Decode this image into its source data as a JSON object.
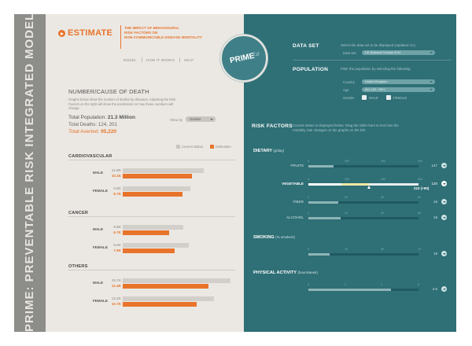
{
  "spine": {
    "title": "PRIME: PREVENTABLE RISK INTEGRATED MODEL"
  },
  "brand": {
    "name": "ESTIMATE",
    "tagline": [
      "THE IMPACT OF BEHAVIOURAL",
      "RISK FACTORS ON",
      "NON-COMMUNICABLE DISEASE MORTALITY"
    ],
    "nav": [
      "MODEL",
      "HOW IT WORKS",
      "HELP"
    ]
  },
  "logo": {
    "word": "PRIME",
    "version": "2.0"
  },
  "death": {
    "title": "NUMBER/CAUSE OF DEATH",
    "desc": [
      "Graphs below show the number of deaths by diseases. Adjusting the Risk",
      "Factors on the right will show the predictions on how these numbers will",
      "change."
    ],
    "population_label": "Total Population:",
    "population_value": "21.3 Million",
    "deaths_label": "Total Deaths:",
    "deaths_value": "124, 201",
    "averted_label": "Total Averted:",
    "averted_value": "95,220",
    "show_by_label": "Show by",
    "show_by_value": "Gender",
    "legend_current": "Current Status",
    "legend_estimation": "Estimation"
  },
  "chart_data": {
    "type": "bar",
    "orientation": "horizontal",
    "title": "NUMBER/CAUSE OF DEATH",
    "series_names": [
      "Current Status",
      "Estimation"
    ],
    "groups": [
      {
        "name": "CARDIOVASCULAR",
        "rows": [
          {
            "label": "MALE",
            "current_label": "11.8K",
            "current": 11.8,
            "estimation_label": "10.1K",
            "estimation": 10.1
          },
          {
            "label": "FEMALE",
            "current_label": "9.8K",
            "current": 9.8,
            "estimation_label": "8.7K",
            "estimation": 8.7
          }
        ]
      },
      {
        "name": "CANCER",
        "rows": [
          {
            "label": "MALE",
            "current_label": "8.8K",
            "current": 8.8,
            "estimation_label": "6.7K",
            "estimation": 6.7
          },
          {
            "label": "FEMALE",
            "current_label": "9.6K",
            "current": 9.6,
            "estimation_label": "7.5K",
            "estimation": 7.5
          }
        ]
      },
      {
        "name": "OTHERS",
        "rows": [
          {
            "label": "MALE",
            "current_label": "15.7K",
            "current": 15.7,
            "estimation_label": "12.4K",
            "estimation": 12.4
          },
          {
            "label": "FEMALE",
            "current_label": "13.3K",
            "current": 13.3,
            "estimation_label": "10.7K",
            "estimation": 10.7
          }
        ]
      }
    ],
    "xlim": [
      0,
      16
    ],
    "colors": {
      "current": "#d2cfca",
      "estimation": "#e8742c"
    }
  },
  "dataset": {
    "title": "DATA SET",
    "desc": "Select the data set to be displayed (Updated 10.)",
    "field_label": "Data Set",
    "field_value": "UK National Census 2011"
  },
  "population": {
    "title": "POPULATION",
    "desc": "Filter the population by selecting the following",
    "country_label": "Country",
    "country_value": "United Kingdom",
    "age_label": "Age",
    "age_value": "ALL (15 - 99+)",
    "gender_label": "Gender",
    "male_label": "MALE",
    "female_label": "FEMALE"
  },
  "risk": {
    "title": "RISK FACTORS",
    "desc": [
      "Current status is displayed below. Drag the slider bars to test how the",
      "mortality rate changes on the graphs on the left."
    ],
    "dietary": {
      "title": "DIETARY",
      "unit": "(g/day)",
      "sliders": [
        {
          "label": "FRUITS",
          "value": "147",
          "level": 0.23,
          "ticks": [
            "0",
            "200",
            "400",
            "600"
          ]
        },
        {
          "label": "VEGETABLE",
          "value": "120",
          "value2": "210 (+90)",
          "level": 0.3,
          "level2": 0.55,
          "ticks": [
            "0",
            "200",
            "400",
            "600"
          ]
        },
        {
          "label": "FIBER",
          "value": "16",
          "level": 0.27,
          "ticks": [
            "0",
            "20",
            "40",
            "60"
          ]
        },
        {
          "label": "ALCOHOL",
          "value": "18",
          "level": 0.29,
          "ticks": [
            "0",
            "20",
            "40",
            "60"
          ]
        }
      ]
    },
    "smoking": {
      "title": "SMOKING",
      "unit": "(% smokers)",
      "value": "19",
      "level": 0.19,
      "ticks": [
        "0",
        "25",
        "50",
        "75"
      ]
    },
    "activity": {
      "title": "PHYSICAL ACTIVITY",
      "unit": "(hours/week)",
      "value": "4.5",
      "level": 0.75,
      "ticks": [
        "0",
        "2",
        "4",
        "6"
      ]
    }
  }
}
